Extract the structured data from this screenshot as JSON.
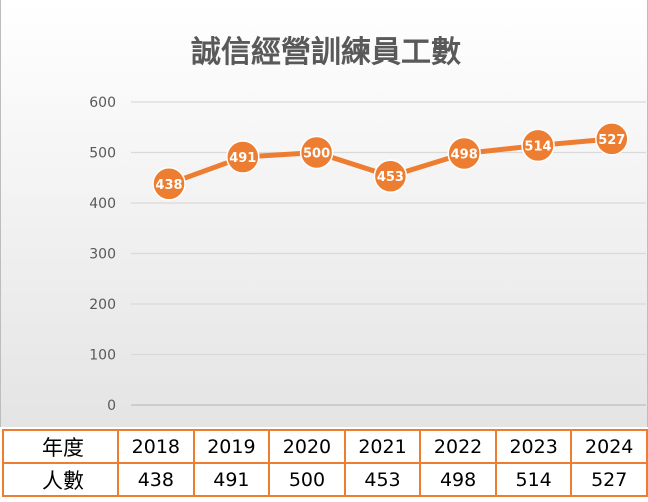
{
  "chart_data": {
    "type": "line",
    "title": "誠信經營訓練員工數",
    "categories": [
      "2018",
      "2019",
      "2020",
      "2021",
      "2022",
      "2023",
      "2024"
    ],
    "series": [
      {
        "values": [
          438,
          491,
          500,
          453,
          498,
          514,
          527
        ]
      }
    ],
    "ylim": [
      0,
      600
    ],
    "yticks": [
      0,
      100,
      200,
      300,
      400,
      500,
      600
    ],
    "grid": true,
    "data_labels": true,
    "colors": {
      "line": "#ed7d31",
      "marker": "#ed7d31",
      "label_text": "#ffffff",
      "gridline": "#d9d9d9",
      "axis_text": "#595959"
    }
  },
  "table": {
    "row1_header": "年度",
    "row2_header": "人數",
    "years": [
      "2018",
      "2019",
      "2020",
      "2021",
      "2022",
      "2023",
      "2024"
    ],
    "counts": [
      "438",
      "491",
      "500",
      "453",
      "498",
      "514",
      "527"
    ]
  }
}
